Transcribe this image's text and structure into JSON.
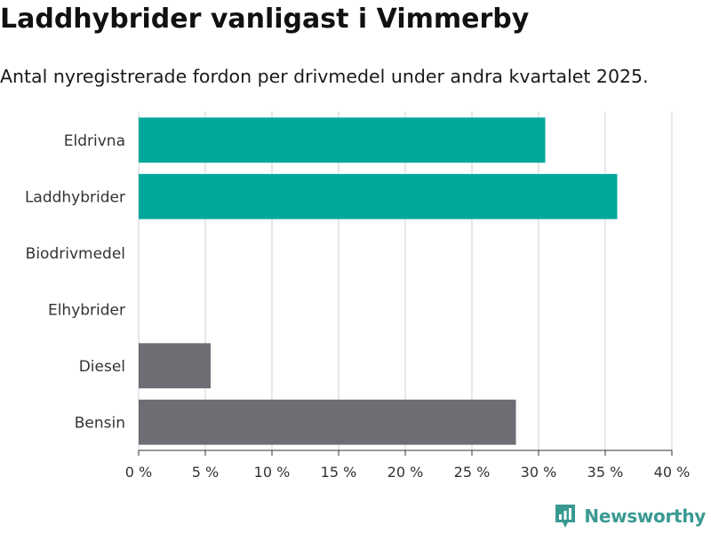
{
  "header": {
    "title": "Laddhybrider vanligast i Vimmerby",
    "subtitle": "Antal nyregistrerade fordon per drivmedel under andra kvartalet 2025."
  },
  "brand": {
    "name": "Newsworthy",
    "color": "#3a9a92"
  },
  "chart_data": {
    "type": "bar",
    "orientation": "horizontal",
    "categories": [
      "Eldrivna",
      "Laddhybrider",
      "Biodrivmedel",
      "Elhybrider",
      "Diesel",
      "Bensin"
    ],
    "values": [
      30.5,
      35.9,
      0,
      0,
      5.4,
      28.3
    ],
    "colors": [
      "#00a79b",
      "#00a79b",
      "#00a79b",
      "#00a79b",
      "#6e6d73",
      "#6e6d73"
    ],
    "xlim": [
      0,
      40
    ],
    "xticks": [
      0,
      5,
      10,
      15,
      20,
      25,
      30,
      35,
      40
    ],
    "xtick_labels": [
      "0 %",
      "5 %",
      "10 %",
      "15 %",
      "20 %",
      "25 %",
      "30 %",
      "35 %",
      "40 %"
    ],
    "grid": "vertical"
  }
}
